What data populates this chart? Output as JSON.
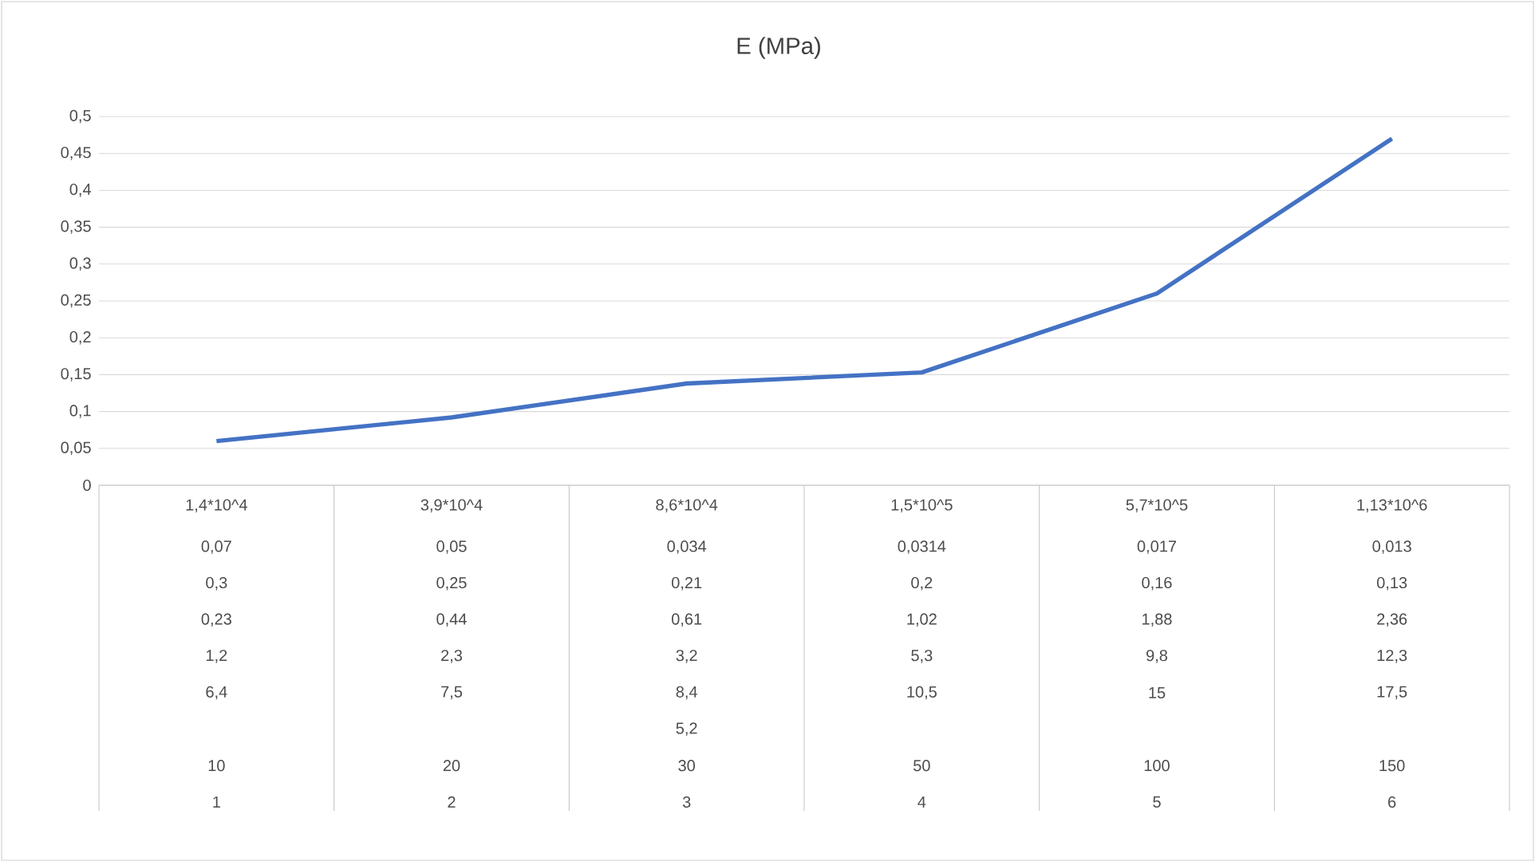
{
  "chart_data": {
    "type": "line",
    "title": "E (MPa)",
    "categories": [
      "1,4*10^4",
      "3,9*10^4",
      "8,6*10^4",
      "1,5*10^5",
      "5,7*10^5",
      "1,13*10^6"
    ],
    "series": [
      {
        "color": "#4472c4",
        "values": [
          0.06,
          0.092,
          0.138,
          0.153,
          0.26,
          0.47
        ]
      }
    ],
    "ylim": [
      0,
      0.5
    ],
    "yticks": [
      {
        "value": 0,
        "label": "0"
      },
      {
        "value": 0.05,
        "label": "0,05"
      },
      {
        "value": 0.1,
        "label": "0,1"
      },
      {
        "value": 0.15,
        "label": "0,15"
      },
      {
        "value": 0.2,
        "label": "0,2"
      },
      {
        "value": 0.25,
        "label": "0,25"
      },
      {
        "value": 0.3,
        "label": "0,3"
      },
      {
        "value": 0.35,
        "label": "0,35"
      },
      {
        "value": 0.4,
        "label": "0,4"
      },
      {
        "value": 0.45,
        "label": "0,45"
      },
      {
        "value": 0.5,
        "label": "0,5"
      }
    ],
    "grid": "y",
    "marker": "none",
    "line_style": "solid",
    "annotations": [
      "0,07",
      "0,05",
      "0,034",
      "0,0314",
      "0,017",
      "0,013",
      "0,3",
      "0,25",
      "0,21",
      "0,2",
      "0,16",
      "0,13",
      "0,23",
      "0,44",
      "0,61",
      "1,02",
      "1,88",
      "2,36",
      "1,2",
      "2,3",
      "3,2",
      "5,3",
      "9,8",
      "12,3",
      "6,4",
      "7,5",
      "8,4",
      "10,5",
      "15",
      "17,5",
      "5,2",
      "10",
      "20",
      "30",
      "50",
      "100",
      "150",
      "1",
      "2",
      "3",
      "4",
      "5",
      "6"
    ]
  }
}
